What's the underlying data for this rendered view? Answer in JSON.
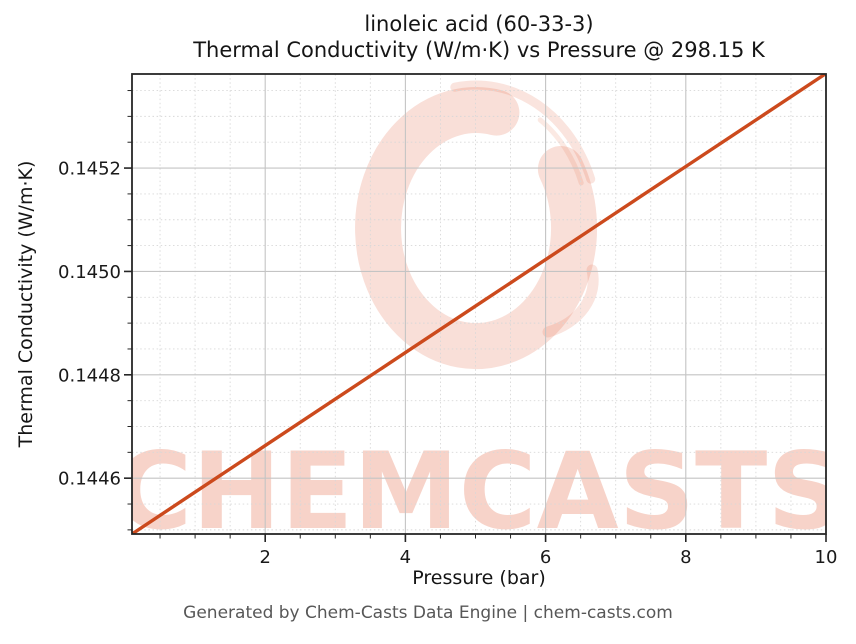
{
  "figure": {
    "footer": "Generated by Chem-Casts Data Engine | chem-casts.com",
    "watermark_text": "CHEMCASTS",
    "background": "#ffffff"
  },
  "chart_data": {
    "type": "line",
    "title": "linoleic acid (60-33-3)",
    "subtitle": "Thermal Conductivity (W/m·K) vs Pressure @ 298.15 K",
    "xlabel": "Pressure (bar)",
    "ylabel": "Thermal Conductivity (W/m·K)",
    "xlim": [
      0.1,
      10
    ],
    "ylim": [
      0.144492,
      0.145382
    ],
    "x_ticks_major": [
      2,
      4,
      6,
      8,
      10
    ],
    "x_tick_labels": [
      "2",
      "4",
      "6",
      "8",
      "10"
    ],
    "x_minor_step": 0.5,
    "y_ticks_major": [
      0.1446,
      0.1448,
      0.145,
      0.1452
    ],
    "y_tick_labels": [
      "0.1446",
      "0.1448",
      "0.1450",
      "0.1452"
    ],
    "y_minor_step": 5e-05,
    "grid": {
      "major": "solid",
      "minor": "dotted"
    },
    "legend": "none",
    "series": [
      {
        "name": "thermal conductivity vs pressure",
        "color": "#cc4a1d",
        "x": [
          0.1,
          1,
          2,
          3,
          4,
          5,
          6,
          7,
          8,
          9,
          10
        ],
        "y": [
          0.144492,
          0.144573,
          0.144663,
          0.144753,
          0.144843,
          0.144933,
          0.145023,
          0.145113,
          0.145203,
          0.145293,
          0.145383
        ]
      }
    ],
    "colors": {
      "line": "#cc4a1d",
      "spine": "#262626",
      "tick_label": "#1a1a1a",
      "grid_major": "#c4c4c4",
      "grid_minor": "#d8d8d8",
      "watermark": "#e2603c",
      "footer_text": "#575757"
    }
  }
}
